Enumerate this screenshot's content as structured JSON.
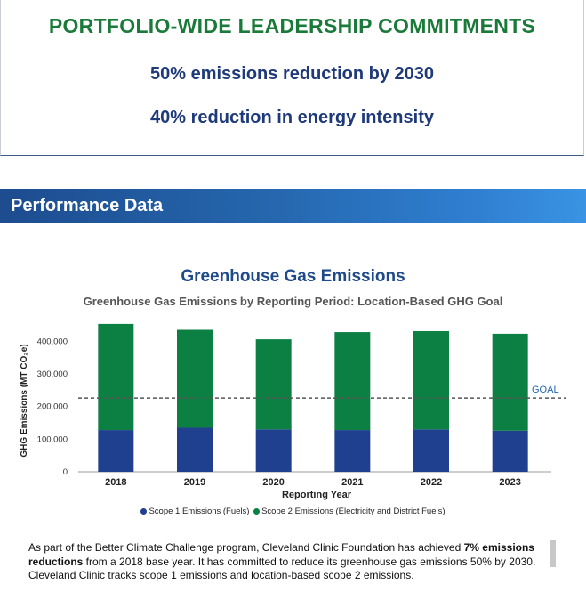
{
  "commitments": {
    "title": "PORTFOLIO-WIDE LEADERSHIP COMMITMENTS",
    "line1": "50% emissions reduction by 2030",
    "line2": "40% reduction in energy intensity"
  },
  "section": {
    "title": "Performance Data"
  },
  "chart_header": {
    "title": "Greenhouse Gas Emissions",
    "subtitle": "Greenhouse Gas Emissions by Reporting Period: Location-Based GHG Goal"
  },
  "chart_data": {
    "type": "bar",
    "stacked": true,
    "categories": [
      "2018",
      "2019",
      "2020",
      "2021",
      "2022",
      "2023"
    ],
    "series": [
      {
        "name": "Scope 1 Emissions (Fuels)",
        "color": "#1f3f8f",
        "values": [
          128000,
          135000,
          130000,
          128000,
          130000,
          126000
        ]
      },
      {
        "name": "Scope 2 Emissions (Electricity and District Fuels)",
        "color": "#0c8043",
        "values": [
          325000,
          300000,
          276000,
          300000,
          301000,
          297000
        ]
      }
    ],
    "goal": {
      "label": "GOAL",
      "value": 226000
    },
    "xlabel": "Reporting Year",
    "ylabel": "GHG Emissions (MT CO₂e)",
    "ylim": [
      0,
      450000
    ],
    "yticks": [
      "0",
      "100,000",
      "200,000",
      "300,000",
      "400,000"
    ],
    "ytick_values": [
      0,
      100000,
      200000,
      300000,
      400000
    ],
    "grid": false,
    "legend_position": "bottom"
  },
  "paragraph": {
    "pre": "As part of the Better Climate Challenge program, Cleveland Clinic Foundation has achieved ",
    "bold": "7% emissions reductions",
    "post": " from a 2018 base year. It has committed to reduce its greenhouse gas emissions 50% by 2030. Cleveland Clinic tracks scope 1 emissions and location-based scope 2 emissions."
  }
}
